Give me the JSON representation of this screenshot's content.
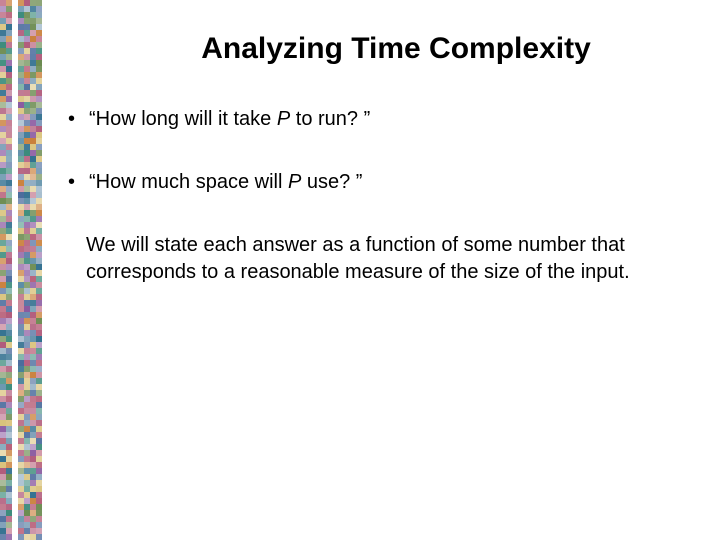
{
  "slide": {
    "title": "Analyzing Time Complexity",
    "bullets": [
      {
        "pre": "“How long will it take ",
        "var": "P",
        "post": " to run? ”"
      },
      {
        "pre": "“How much space will ",
        "var": "P",
        "post": " use? ”"
      }
    ],
    "paragraph": "We will state each answer as a function of some number that corresponds to a reasonable measure of the size of the input."
  },
  "style": {
    "background_color": "#ffffff",
    "text_color": "#000000",
    "title_fontsize": 30,
    "body_fontsize": 20,
    "strip_width": 42,
    "strip_colors": [
      "#7e9fb8",
      "#d9c27a",
      "#b05a7a",
      "#6a8a4f",
      "#2f6e8e",
      "#c97f3a",
      "#4a6b9c",
      "#8a5aa0",
      "#3a8a7a",
      "#b8617a"
    ]
  }
}
